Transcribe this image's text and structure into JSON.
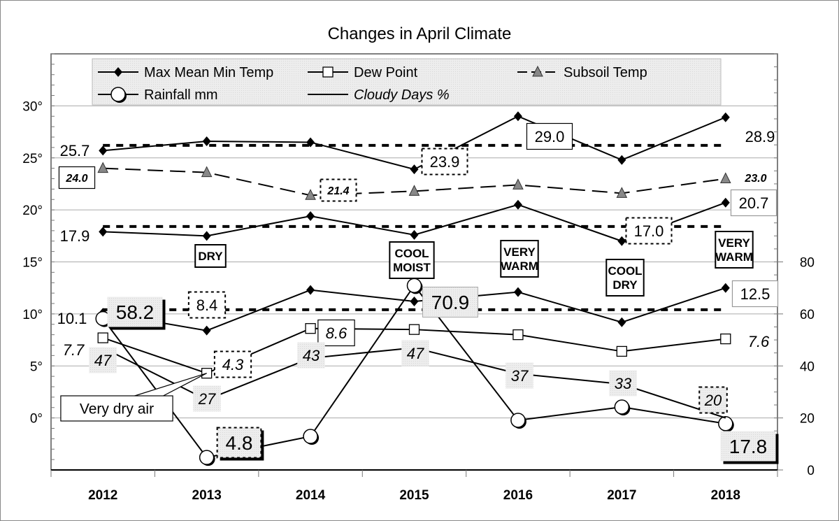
{
  "chart_data": {
    "type": "line",
    "title": "Changes in April Climate",
    "categories": [
      "2012",
      "2013",
      "2014",
      "2015",
      "2016",
      "2017",
      "2018"
    ],
    "left_axis": {
      "range": [
        -5,
        35
      ],
      "ticks": [
        0,
        5,
        10,
        15,
        20,
        25,
        30
      ],
      "tick_labels": [
        "0°",
        "5°",
        "10°",
        "15°",
        "20°",
        "25°",
        "30°"
      ]
    },
    "right_axis": {
      "range": [
        0,
        160
      ],
      "ticks": [
        0,
        20,
        40,
        60,
        80
      ],
      "tick_labels": [
        "0",
        "20",
        "40",
        "60",
        "80"
      ]
    },
    "grid": true,
    "legend": {
      "placement": "top",
      "entries": [
        "Max Mean Min Temp",
        "Dew Point",
        "Subsoil Temp",
        "Rainfall mm",
        "Cloudy Days %"
      ]
    },
    "series": [
      {
        "name": "Max Mean Min Temp",
        "key": "max",
        "axis": "left",
        "marker": "diamond",
        "values": [
          25.7,
          26.6,
          26.5,
          23.9,
          29.0,
          24.8,
          28.9
        ]
      },
      {
        "name": "Max Mean Min Temp",
        "key": "mean",
        "axis": "left",
        "marker": "diamond",
        "values": [
          17.9,
          17.5,
          19.4,
          17.6,
          20.5,
          17.0,
          20.7
        ]
      },
      {
        "name": "Max Mean Min Temp",
        "key": "min",
        "axis": "left",
        "marker": "diamond",
        "values": [
          10.1,
          8.4,
          12.3,
          11.2,
          12.1,
          9.2,
          12.5
        ]
      },
      {
        "name": "Dew Point",
        "key": "dew",
        "axis": "left",
        "marker": "square",
        "values": [
          7.7,
          4.3,
          8.6,
          8.5,
          8.0,
          6.4,
          7.6
        ]
      },
      {
        "name": "Subsoil Temp",
        "key": "subsoil",
        "axis": "left",
        "marker": "triangle",
        "dashed": true,
        "values": [
          24.0,
          23.6,
          21.4,
          21.8,
          22.4,
          21.6,
          23.0
        ]
      },
      {
        "name": "Rainfall mm",
        "key": "rain",
        "axis": "right",
        "marker": "circle",
        "values": [
          58.2,
          4.8,
          12.9,
          70.9,
          19.1,
          24.2,
          17.8
        ]
      },
      {
        "name": "Cloudy Days %",
        "key": "cloudy",
        "axis": "right",
        "marker": "none",
        "values": [
          47,
          27,
          43,
          47,
          37,
          33,
          20
        ]
      }
    ],
    "reference_lines": [
      {
        "axis": "left",
        "value": 26.2,
        "style": "dotted"
      },
      {
        "axis": "left",
        "value": 18.4,
        "style": "dotted"
      },
      {
        "axis": "left",
        "value": 10.4,
        "style": "dotted"
      }
    ],
    "annotations": [
      {
        "text": "25.7",
        "style": "plain"
      },
      {
        "text": "17.9",
        "style": "plain"
      },
      {
        "text": "10.1",
        "style": "plain"
      },
      {
        "text": "7.7",
        "style": "plain-italic"
      },
      {
        "text": "24.0",
        "style": "box-bold-italic"
      },
      {
        "text": "58.2",
        "style": "shaded-shadow"
      },
      {
        "text": "8.4",
        "style": "dotted"
      },
      {
        "text": "DRY",
        "style": "condition"
      },
      {
        "text": "21.4",
        "style": "dotted-bold-italic"
      },
      {
        "text": "4.3",
        "style": "dotted-italic"
      },
      {
        "text": "47",
        "style": "shaded-italic"
      },
      {
        "text": "27",
        "style": "shaded-italic"
      },
      {
        "text": "Very dry air",
        "style": "callout"
      },
      {
        "text": "4.8",
        "style": "shaded-dotted-shadow"
      },
      {
        "text": "8.6",
        "style": "box-italic"
      },
      {
        "text": "43",
        "style": "shaded-italic"
      },
      {
        "text": "23.9",
        "style": "dotted"
      },
      {
        "text": "COOL MOIST",
        "style": "condition"
      },
      {
        "text": "70.9",
        "style": "shaded-box"
      },
      {
        "text": "47",
        "style": "shaded-italic"
      },
      {
        "text": "29.0",
        "style": "box"
      },
      {
        "text": "VERY WARM",
        "style": "condition"
      },
      {
        "text": "37",
        "style": "shaded-italic"
      },
      {
        "text": "17.0",
        "style": "dotted"
      },
      {
        "text": "COOL DRY",
        "style": "condition"
      },
      {
        "text": "33",
        "style": "shaded-italic"
      },
      {
        "text": "28.9",
        "style": "plain"
      },
      {
        "text": "23.0",
        "style": "bold-italic-small"
      },
      {
        "text": "20.7",
        "style": "box-gray"
      },
      {
        "text": "VERY WARM",
        "style": "condition"
      },
      {
        "text": "12.5",
        "style": "box-gray"
      },
      {
        "text": "7.6",
        "style": "plain-italic"
      },
      {
        "text": "20",
        "style": "shaded-dotted-italic"
      },
      {
        "text": "17.8",
        "style": "shaded-shadow"
      }
    ]
  }
}
